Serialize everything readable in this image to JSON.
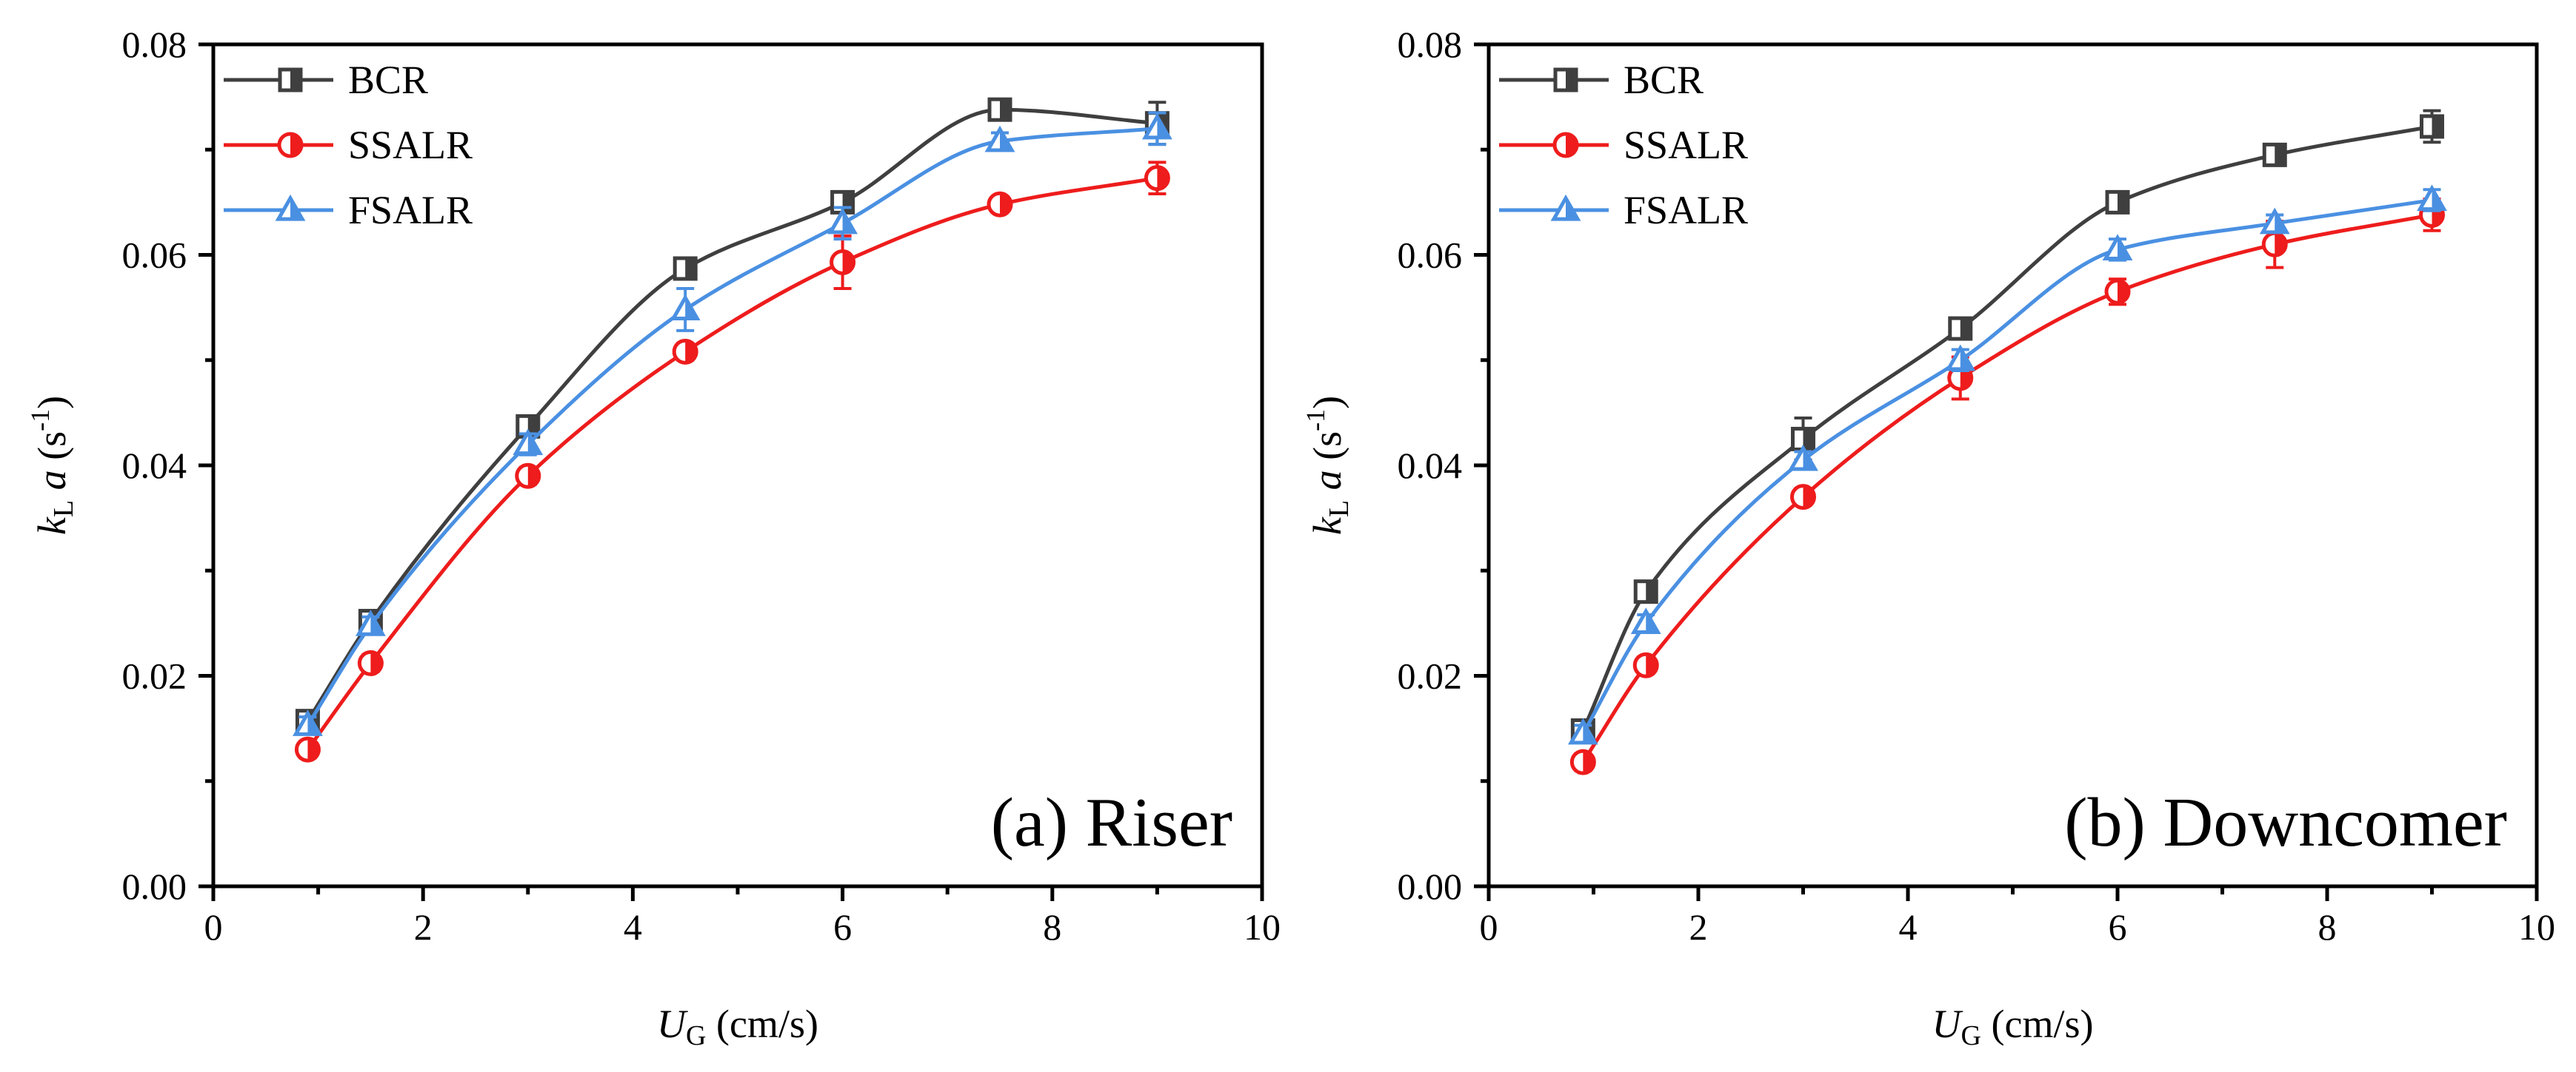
{
  "chart_data": [
    {
      "type": "line",
      "panel": "a",
      "title": "(a) Riser",
      "xlabel": "U_G (cm/s)",
      "ylabel": "k_L a (s^-1)",
      "xlim": [
        0,
        10
      ],
      "ylim": [
        0,
        0.08
      ],
      "xticks": [
        "0",
        "2",
        "4",
        "6",
        "8",
        "10"
      ],
      "yticks": [
        "0.00",
        "0.02",
        "0.04",
        "0.06",
        "0.08"
      ],
      "legend_position": "top-left",
      "x": [
        0.9,
        1.5,
        3.0,
        4.5,
        6.0,
        7.5,
        9.0
      ],
      "series": [
        {
          "name": "BCR",
          "color": "#3f3f3f",
          "marker": "square",
          "values": [
            0.0157,
            0.0252,
            0.0437,
            0.0587,
            0.065,
            0.0738,
            0.0725
          ],
          "errors": [
            0.0008,
            0.0008,
            0.001,
            0.0008,
            0.0008,
            0.0008,
            0.002
          ]
        },
        {
          "name": "SSALR",
          "color": "#ee1c1c",
          "marker": "circle",
          "values": [
            0.013,
            0.0212,
            0.039,
            0.0508,
            0.0593,
            0.0648,
            0.0673
          ],
          "errors": [
            0.0008,
            0.0008,
            0.0008,
            0.0008,
            0.0025,
            0.0005,
            0.0015
          ]
        },
        {
          "name": "FSALR",
          "color": "#4a90e2",
          "marker": "triangle",
          "values": [
            0.0153,
            0.0248,
            0.042,
            0.0548,
            0.063,
            0.0708,
            0.072
          ],
          "errors": [
            0.0008,
            0.0008,
            0.001,
            0.002,
            0.0015,
            0.0008,
            0.0015
          ]
        }
      ]
    },
    {
      "type": "line",
      "panel": "b",
      "title": "(b) Downcomer",
      "xlabel": "U_G (cm/s)",
      "ylabel": "k_L a (s^-1)",
      "xlim": [
        0,
        10
      ],
      "ylim": [
        0,
        0.08
      ],
      "xticks": [
        "0",
        "2",
        "4",
        "6",
        "8",
        "10"
      ],
      "yticks": [
        "0.00",
        "0.02",
        "0.04",
        "0.06",
        "0.08"
      ],
      "legend_position": "top-left",
      "x": [
        0.9,
        1.5,
        3.0,
        4.5,
        6.0,
        7.5,
        9.0
      ],
      "series": [
        {
          "name": "BCR",
          "color": "#3f3f3f",
          "marker": "square",
          "values": [
            0.0148,
            0.028,
            0.0425,
            0.053,
            0.065,
            0.0695,
            0.0722
          ],
          "errors": [
            0.0008,
            0.0008,
            0.002,
            0.0008,
            0.0008,
            0.0008,
            0.0015
          ]
        },
        {
          "name": "SSALR",
          "color": "#ee1c1c",
          "marker": "circle",
          "values": [
            0.0118,
            0.021,
            0.037,
            0.0483,
            0.0565,
            0.061,
            0.0638
          ],
          "errors": [
            0.0008,
            0.0008,
            0.0008,
            0.002,
            0.0012,
            0.0022,
            0.0015
          ]
        },
        {
          "name": "FSALR",
          "color": "#4a90e2",
          "marker": "triangle",
          "values": [
            0.0145,
            0.025,
            0.0405,
            0.05,
            0.0605,
            0.063,
            0.0652
          ],
          "errors": [
            0.0008,
            0.0008,
            0.0008,
            0.001,
            0.001,
            0.0008,
            0.001
          ]
        }
      ]
    }
  ]
}
